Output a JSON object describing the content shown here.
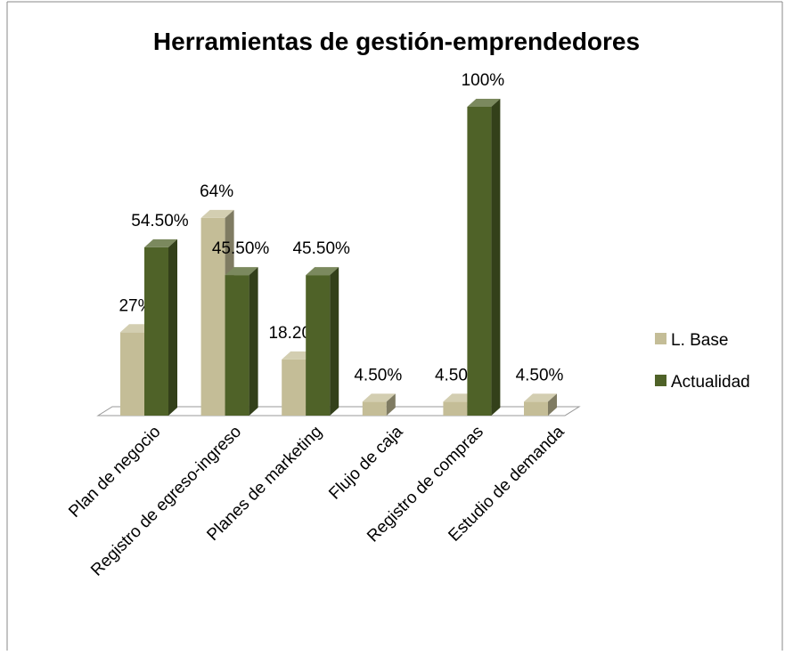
{
  "chart_data": {
    "type": "bar3d",
    "title": "Herramientas de gestión-emprendedores",
    "categories": [
      "Plan de negocio",
      "Registro de egreso-ingreso",
      "Planes de marketing",
      "Flujo de caja",
      "Registro de compras",
      "Estudio de demanda"
    ],
    "series": [
      {
        "name": "L. Base",
        "color": "#c4bd97",
        "values": [
          27,
          64,
          18.2,
          4.5,
          4.5,
          4.5
        ],
        "value_labels": [
          "27%",
          "64%",
          "18.20%",
          "4.50%",
          "4.50%",
          "4.50%"
        ]
      },
      {
        "name": "Actualidad",
        "color": "#4f6228",
        "values": [
          54.5,
          45.5,
          45.5,
          null,
          100,
          null
        ],
        "value_labels": [
          "54.50%",
          "45.50%",
          "45.50%",
          null,
          "100%",
          null
        ]
      }
    ],
    "legend": "right"
  }
}
